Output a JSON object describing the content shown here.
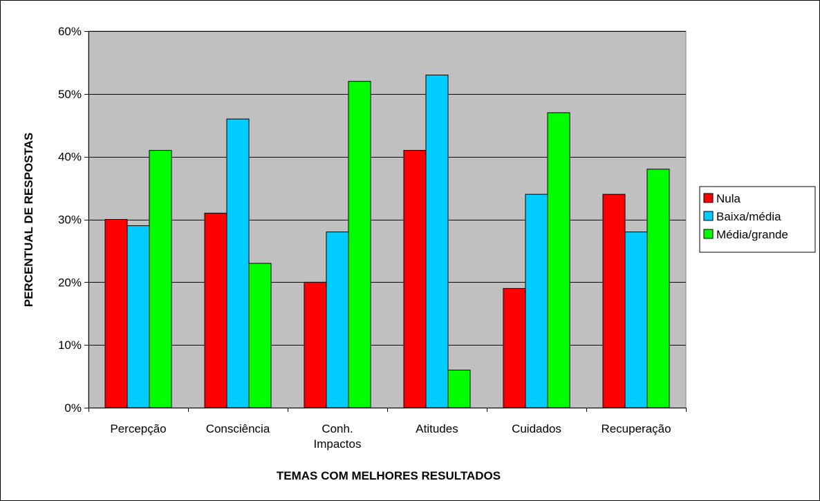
{
  "chart_data": {
    "type": "bar",
    "categories": [
      [
        "Percepção"
      ],
      [
        "Consciência"
      ],
      [
        "Conh.",
        "Impactos"
      ],
      [
        "Atitudes"
      ],
      [
        "Cuidados"
      ],
      [
        "Recuperação"
      ]
    ],
    "series": [
      {
        "name": "Nula",
        "color": "#ff0000",
        "values": [
          30,
          31,
          20,
          41,
          19,
          34
        ]
      },
      {
        "name": "Baixa/média",
        "color": "#00ccff",
        "values": [
          29,
          46,
          28,
          53,
          34,
          28
        ]
      },
      {
        "name": "Média/grande",
        "color": "#00ff00",
        "values": [
          41,
          23,
          52,
          6,
          47,
          38
        ]
      }
    ],
    "xlabel": "TEMAS COM MELHORES RESULTADOS",
    "ylabel": "PERCENTUAL DE RESPOSTAS",
    "ylim": [
      0,
      60
    ],
    "yticks": [
      0,
      10,
      20,
      30,
      40,
      50,
      60
    ],
    "ytick_suffix": "%",
    "grid": true,
    "plot_background": "#c0c0c0",
    "legend_position": "right"
  }
}
